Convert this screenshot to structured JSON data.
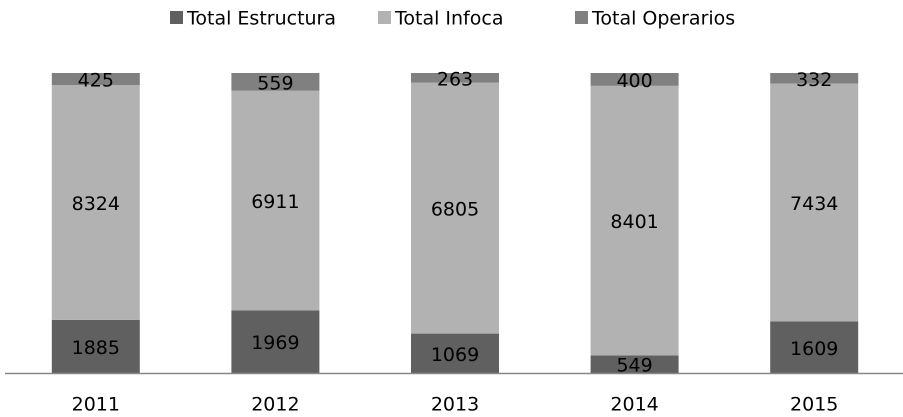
{
  "chart_data": {
    "type": "bar",
    "stacked": "percent",
    "categories": [
      "2011",
      "2012",
      "2013",
      "2014",
      "2015"
    ],
    "series": [
      {
        "name": "Total Estructura",
        "color": "#606060",
        "values": [
          1885,
          1969,
          1069,
          549,
          1609
        ]
      },
      {
        "name": "Total Infoca",
        "color": "#b2b2b2",
        "values": [
          8324,
          6911,
          6805,
          8401,
          7434
        ]
      },
      {
        "name": "Total Operarios",
        "color": "#808080",
        "values": [
          425,
          559,
          263,
          400,
          332
        ]
      }
    ],
    "legend": "top"
  }
}
